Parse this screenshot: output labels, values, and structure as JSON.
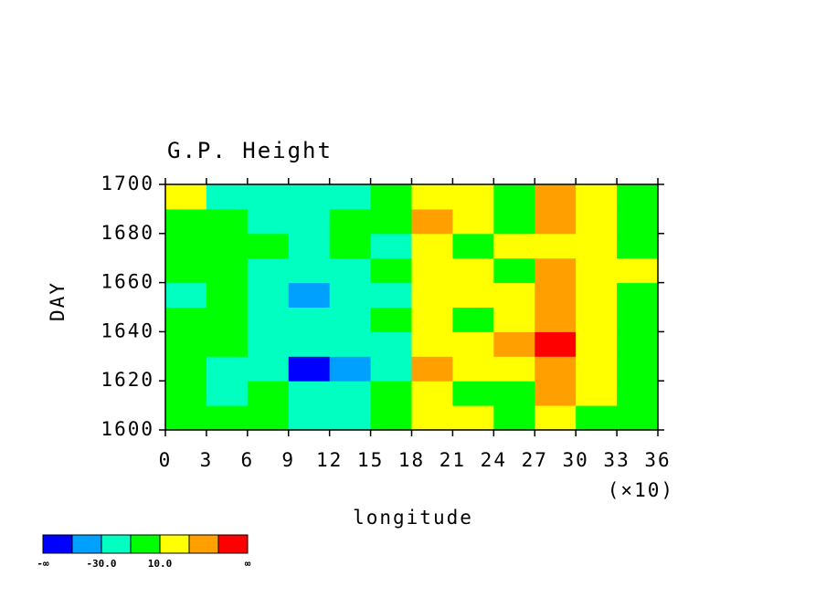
{
  "chart_data": {
    "type": "heatmap",
    "title": "G.P. Height",
    "xlabel": "longitude",
    "ylabel": "DAY",
    "x_multiplier": "(×10)",
    "xbins": [
      0,
      30,
      60,
      90,
      120,
      150,
      180,
      210,
      240,
      270,
      300,
      330,
      360
    ],
    "ybins": [
      1600,
      1610,
      1620,
      1630,
      1640,
      1650,
      1660,
      1670,
      1680,
      1690,
      1700
    ],
    "values": [
      [
        0,
        0,
        0,
        -20,
        -20,
        0,
        20,
        20,
        0,
        20,
        0,
        0
      ],
      [
        0,
        -20,
        0,
        -20,
        -20,
        0,
        20,
        0,
        0,
        40,
        20,
        0
      ],
      [
        0,
        -20,
        -20,
        -60,
        -40,
        -20,
        40,
        20,
        20,
        40,
        20,
        0
      ],
      [
        0,
        0,
        -20,
        -20,
        -20,
        -20,
        20,
        20,
        40,
        60,
        20,
        0
      ],
      [
        0,
        0,
        -20,
        -20,
        -20,
        0,
        20,
        0,
        20,
        40,
        20,
        0
      ],
      [
        -20,
        0,
        -20,
        -40,
        -20,
        -20,
        20,
        20,
        20,
        40,
        20,
        0
      ],
      [
        0,
        0,
        -20,
        -20,
        -20,
        0,
        20,
        20,
        0,
        40,
        20,
        20
      ],
      [
        0,
        0,
        0,
        -20,
        0,
        -20,
        20,
        0,
        20,
        20,
        20,
        0
      ],
      [
        0,
        0,
        -20,
        -20,
        0,
        0,
        40,
        20,
        0,
        40,
        20,
        0
      ],
      [
        20,
        -20,
        -20,
        -20,
        -20,
        0,
        20,
        20,
        0,
        40,
        20,
        0
      ]
    ],
    "xlim": [
      0,
      360
    ],
    "ylim": [
      1600,
      1700
    ],
    "xticks": [
      {
        "value": 0,
        "label": "0"
      },
      {
        "value": 30,
        "label": "3"
      },
      {
        "value": 60,
        "label": "6"
      },
      {
        "value": 90,
        "label": "9"
      },
      {
        "value": 120,
        "label": "12"
      },
      {
        "value": 150,
        "label": "15"
      },
      {
        "value": 180,
        "label": "18"
      },
      {
        "value": 210,
        "label": "21"
      },
      {
        "value": 240,
        "label": "24"
      },
      {
        "value": 270,
        "label": "27"
      },
      {
        "value": 300,
        "label": "30"
      },
      {
        "value": 330,
        "label": "33"
      },
      {
        "value": 360,
        "label": "36"
      }
    ],
    "yticks": [
      1600,
      1620,
      1640,
      1660,
      1680,
      1700
    ],
    "levels": [
      -50,
      -30,
      -10,
      10,
      30,
      50
    ],
    "colors": [
      "#0000ff",
      "#00a0ff",
      "#00ffc0",
      "#00ff00",
      "#ffff00",
      "#ffa000",
      "#ff0000"
    ],
    "colorbar_labels": [
      {
        "value": -30,
        "label": "-30.0"
      },
      {
        "value": 10,
        "label": "10.0"
      }
    ],
    "colorbar_ends": [
      "-∞",
      "∞"
    ]
  }
}
